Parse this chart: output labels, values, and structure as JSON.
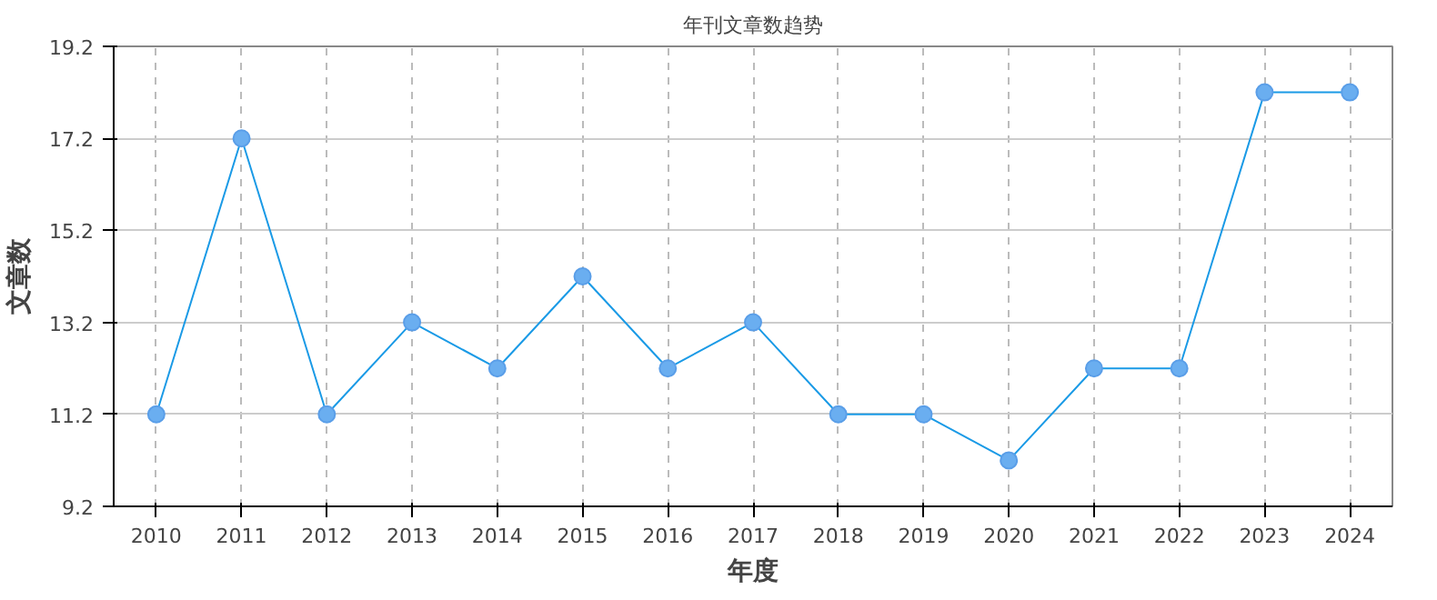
{
  "chart_data": {
    "type": "line",
    "title": "年刊文章数趋势",
    "xlabel": "年度",
    "ylabel": "文章数",
    "categories": [
      "2010",
      "2011",
      "2012",
      "2013",
      "2014",
      "2015",
      "2016",
      "2017",
      "2018",
      "2019",
      "2020",
      "2021",
      "2022",
      "2023",
      "2024"
    ],
    "series": [
      {
        "color": "#1a9ae6",
        "values": [
          11.2,
          17.2,
          11.2,
          13.2,
          12.2,
          14.2,
          12.2,
          13.2,
          11.2,
          11.2,
          10.2,
          12.2,
          12.2,
          18.2,
          18.2
        ]
      }
    ],
    "ylim": [
      9.2,
      19.2
    ],
    "yticks": [
      9.2,
      11.2,
      13.2,
      15.2,
      17.2,
      19.2
    ],
    "grid": true,
    "marker": "circle",
    "line_style": "solid"
  }
}
